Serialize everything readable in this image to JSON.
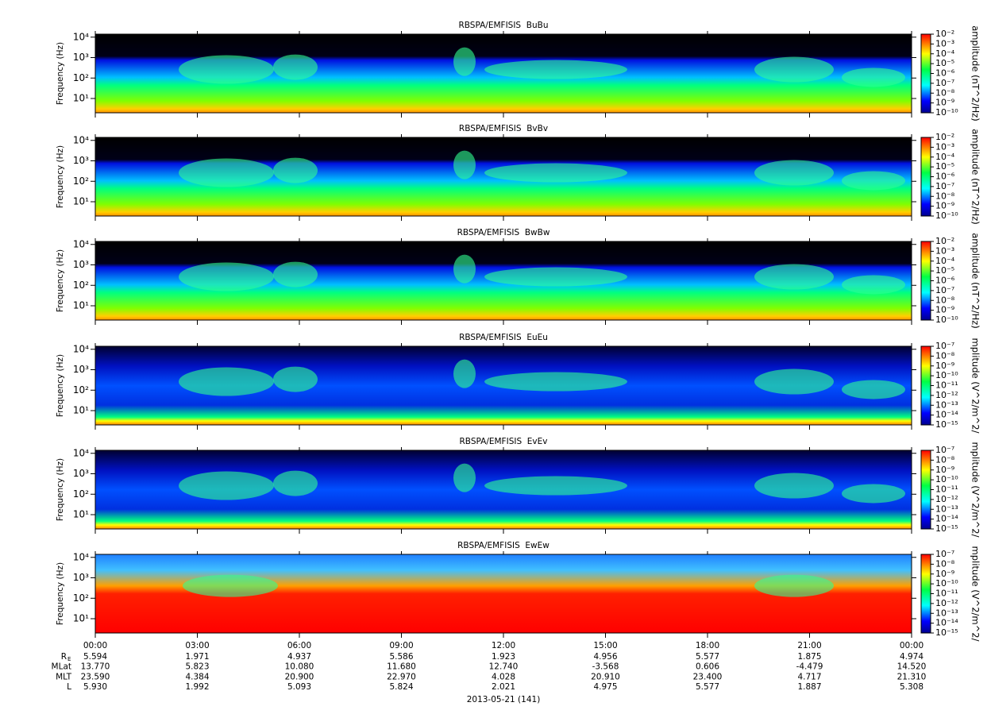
{
  "chart_data": [
    {
      "type": "heatmap",
      "title": "RBSPA/EMFISIS  BuBu",
      "y_label": "Frequency (Hz)",
      "log_y": true,
      "ylim": [
        2,
        14000
      ],
      "yticks": [
        {
          "value": 10,
          "label": "10¹"
        },
        {
          "value": 100,
          "label": "10²"
        },
        {
          "value": 1000,
          "label": "10³"
        },
        {
          "value": 10000,
          "label": "10⁴"
        }
      ],
      "colorbar": {
        "label": "amplitude (nT^2/Hz)",
        "lim": [
          1e-10,
          0.01
        ],
        "ticks": [
          {
            "value": 0.01,
            "label": "10⁻²"
          },
          {
            "value": 0.001,
            "label": "10⁻³"
          },
          {
            "value": 0.0001,
            "label": "10⁻⁴"
          },
          {
            "value": 1e-05,
            "label": "10⁻⁵"
          },
          {
            "value": 1e-06,
            "label": "10⁻⁶"
          },
          {
            "value": 1e-07,
            "label": "10⁻⁷"
          },
          {
            "value": 1e-08,
            "label": "10⁻⁸"
          },
          {
            "value": 1e-09,
            "label": "10⁻⁹"
          },
          {
            "value": 1e-10,
            "label": "10⁻¹⁰"
          }
        ]
      }
    },
    {
      "type": "heatmap",
      "title": "RBSPA/EMFISIS  BvBv",
      "y_label": "Frequency (Hz)",
      "log_y": true,
      "ylim": [
        2,
        14000
      ],
      "yticks": [
        {
          "value": 10,
          "label": "10¹"
        },
        {
          "value": 100,
          "label": "10²"
        },
        {
          "value": 1000,
          "label": "10³"
        },
        {
          "value": 10000,
          "label": "10⁴"
        }
      ],
      "colorbar": {
        "label": "amplitude (nT^2/Hz)",
        "lim": [
          1e-10,
          0.01
        ],
        "ticks": [
          {
            "value": 0.01,
            "label": "10⁻²"
          },
          {
            "value": 0.001,
            "label": "10⁻³"
          },
          {
            "value": 0.0001,
            "label": "10⁻⁴"
          },
          {
            "value": 1e-05,
            "label": "10⁻⁵"
          },
          {
            "value": 1e-06,
            "label": "10⁻⁶"
          },
          {
            "value": 1e-07,
            "label": "10⁻⁷"
          },
          {
            "value": 1e-08,
            "label": "10⁻⁸"
          },
          {
            "value": 1e-09,
            "label": "10⁻⁹"
          },
          {
            "value": 1e-10,
            "label": "10⁻¹⁰"
          }
        ]
      }
    },
    {
      "type": "heatmap",
      "title": "RBSPA/EMFISIS  BwBw",
      "y_label": "Frequency (Hz)",
      "log_y": true,
      "ylim": [
        2,
        14000
      ],
      "yticks": [
        {
          "value": 10,
          "label": "10¹"
        },
        {
          "value": 100,
          "label": "10²"
        },
        {
          "value": 1000,
          "label": "10³"
        },
        {
          "value": 10000,
          "label": "10⁴"
        }
      ],
      "colorbar": {
        "label": "amplitude (nT^2/Hz)",
        "lim": [
          1e-10,
          0.01
        ],
        "ticks": [
          {
            "value": 0.01,
            "label": "10⁻²"
          },
          {
            "value": 0.001,
            "label": "10⁻³"
          },
          {
            "value": 0.0001,
            "label": "10⁻⁴"
          },
          {
            "value": 1e-05,
            "label": "10⁻⁵"
          },
          {
            "value": 1e-06,
            "label": "10⁻⁶"
          },
          {
            "value": 1e-07,
            "label": "10⁻⁷"
          },
          {
            "value": 1e-08,
            "label": "10⁻⁸"
          },
          {
            "value": 1e-09,
            "label": "10⁻⁹"
          },
          {
            "value": 1e-10,
            "label": "10⁻¹⁰"
          }
        ]
      }
    },
    {
      "type": "heatmap",
      "title": "RBSPA/EMFISIS  EuEu",
      "y_label": "Frequency (Hz)",
      "log_y": true,
      "ylim": [
        2,
        14000
      ],
      "yticks": [
        {
          "value": 10,
          "label": "10¹"
        },
        {
          "value": 100,
          "label": "10²"
        },
        {
          "value": 1000,
          "label": "10³"
        },
        {
          "value": 10000,
          "label": "10⁴"
        }
      ],
      "colorbar": {
        "label": "mplitude (V^2/m^2/",
        "lim": [
          1e-15,
          1e-07
        ],
        "ticks": [
          {
            "value": 1e-07,
            "label": "10⁻⁷"
          },
          {
            "value": 1e-08,
            "label": "10⁻⁸"
          },
          {
            "value": 1e-09,
            "label": "10⁻⁹"
          },
          {
            "value": 1e-10,
            "label": "10⁻¹⁰"
          },
          {
            "value": 1e-11,
            "label": "10⁻¹¹"
          },
          {
            "value": 1e-12,
            "label": "10⁻¹²"
          },
          {
            "value": 1e-13,
            "label": "10⁻¹³"
          },
          {
            "value": 1e-14,
            "label": "10⁻¹⁴"
          },
          {
            "value": 1e-15,
            "label": "10⁻¹⁵"
          }
        ]
      }
    },
    {
      "type": "heatmap",
      "title": "RBSPA/EMFISIS  EvEv",
      "y_label": "Frequency (Hz)",
      "log_y": true,
      "ylim": [
        2,
        14000
      ],
      "yticks": [
        {
          "value": 10,
          "label": "10¹"
        },
        {
          "value": 100,
          "label": "10²"
        },
        {
          "value": 1000,
          "label": "10³"
        },
        {
          "value": 10000,
          "label": "10⁴"
        }
      ],
      "colorbar": {
        "label": "mplitude (V^2/m^2/",
        "lim": [
          1e-15,
          1e-07
        ],
        "ticks": [
          {
            "value": 1e-07,
            "label": "10⁻⁷"
          },
          {
            "value": 1e-08,
            "label": "10⁻⁸"
          },
          {
            "value": 1e-09,
            "label": "10⁻⁹"
          },
          {
            "value": 1e-10,
            "label": "10⁻¹⁰"
          },
          {
            "value": 1e-11,
            "label": "10⁻¹¹"
          },
          {
            "value": 1e-12,
            "label": "10⁻¹²"
          },
          {
            "value": 1e-13,
            "label": "10⁻¹³"
          },
          {
            "value": 1e-14,
            "label": "10⁻¹⁴"
          },
          {
            "value": 1e-15,
            "label": "10⁻¹⁵"
          }
        ]
      }
    },
    {
      "type": "heatmap",
      "title": "RBSPA/EMFISIS  EwEw",
      "y_label": "Frequency (Hz)",
      "log_y": true,
      "ylim": [
        2,
        14000
      ],
      "yticks": [
        {
          "value": 10,
          "label": "10¹"
        },
        {
          "value": 100,
          "label": "10²"
        },
        {
          "value": 1000,
          "label": "10³"
        },
        {
          "value": 10000,
          "label": "10⁴"
        }
      ],
      "colorbar": {
        "label": "mplitude (V^2/m^2/",
        "lim": [
          1e-15,
          1e-07
        ],
        "ticks": [
          {
            "value": 1e-07,
            "label": "10⁻⁷"
          },
          {
            "value": 1e-08,
            "label": "10⁻⁸"
          },
          {
            "value": 1e-09,
            "label": "10⁻⁹"
          },
          {
            "value": 1e-10,
            "label": "10⁻¹⁰"
          },
          {
            "value": 1e-11,
            "label": "10⁻¹¹"
          },
          {
            "value": 1e-12,
            "label": "10⁻¹²"
          },
          {
            "value": 1e-13,
            "label": "10⁻¹³"
          },
          {
            "value": 1e-14,
            "label": "10⁻¹⁴"
          },
          {
            "value": 1e-15,
            "label": "10⁻¹⁵"
          }
        ]
      },
      "xlim": [
        0,
        24
      ],
      "xticks": [
        {
          "value": 0,
          "label": "00:00"
        },
        {
          "value": 3,
          "label": "03:00"
        },
        {
          "value": 6,
          "label": "06:00"
        },
        {
          "value": 9,
          "label": "09:00"
        },
        {
          "value": 12,
          "label": "12:00"
        },
        {
          "value": 15,
          "label": "15:00"
        },
        {
          "value": 18,
          "label": "18:00"
        },
        {
          "value": 21,
          "label": "21:00"
        },
        {
          "value": 24,
          "label": "00:00"
        }
      ],
      "x_label": "2013-05-21 (141)",
      "ephemeris": [
        {
          "label": "R",
          "sub": "E",
          "values": [
            "5.594",
            "1.971",
            "4.937",
            "5.586",
            "1.923",
            "4.956",
            "5.577",
            "1.875",
            "4.974"
          ]
        },
        {
          "label": "MLat",
          "values": [
            "13.770",
            "5.823",
            "10.080",
            "11.680",
            "12.740",
            "-3.568",
            "0.606",
            "-4.479",
            "14.520"
          ]
        },
        {
          "label": "MLT",
          "values": [
            "23.590",
            "4.384",
            "20.900",
            "22.970",
            "4.028",
            "20.910",
            "23.400",
            "4.717",
            "21.310"
          ]
        },
        {
          "label": "L",
          "values": [
            "5.930",
            "1.992",
            "5.093",
            "5.824",
            "2.021",
            "4.975",
            "5.577",
            "1.887",
            "5.308"
          ]
        }
      ]
    }
  ]
}
